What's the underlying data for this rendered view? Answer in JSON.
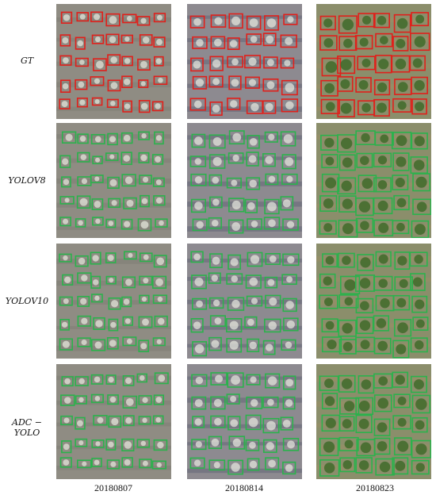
{
  "figure": {
    "row_labels": [
      "GT",
      "YOLOV8",
      "YOLOV10",
      "ADC − YOLO"
    ],
    "column_labels": [
      "20180807",
      "20180814",
      "20180823"
    ],
    "box_colors": {
      "ground_truth": "#e0201b",
      "prediction": "#2bb24c"
    },
    "field_colors": [
      "#8f8c83",
      "#8d8a90",
      "#8b8e6b"
    ]
  }
}
